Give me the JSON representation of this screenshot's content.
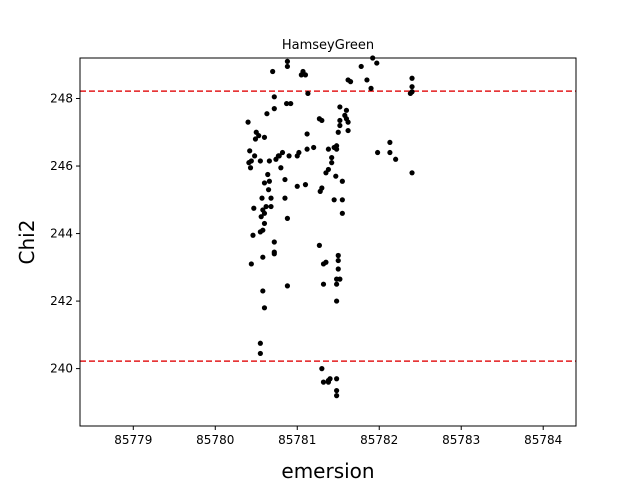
{
  "chart_data": {
    "type": "scatter",
    "title": "HamseyGreen",
    "xlabel": "emersion",
    "ylabel": "Chi2",
    "xlim": [
      85778.35,
      85784.4
    ],
    "ylim": [
      238.3,
      249.2
    ],
    "xticks": [
      85779,
      85780,
      85781,
      85782,
      85783,
      85784
    ],
    "yticks": [
      240,
      242,
      244,
      246,
      248
    ],
    "grid": false,
    "marker_color": "#000000",
    "reference_lines": [
      {
        "axis": "y",
        "value": 248.22,
        "color": "#e31a1c",
        "style": "dashed"
      },
      {
        "axis": "y",
        "value": 240.22,
        "color": "#e31a1c",
        "style": "dashed"
      }
    ],
    "points": [
      [
        85780.4,
        247.3
      ],
      [
        85780.42,
        246.45
      ],
      [
        85780.41,
        246.1
      ],
      [
        85780.44,
        246.15
      ],
      [
        85780.43,
        245.95
      ],
      [
        85780.48,
        246.3
      ],
      [
        85780.5,
        247.0
      ],
      [
        85780.49,
        246.8
      ],
      [
        85780.53,
        246.9
      ],
      [
        85780.55,
        246.15
      ],
      [
        85780.47,
        244.75
      ],
      [
        85780.46,
        243.95
      ],
      [
        85780.44,
        243.1
      ],
      [
        85780.55,
        244.05
      ],
      [
        85780.56,
        244.5
      ],
      [
        85780.58,
        244.1
      ],
      [
        85780.6,
        244.3
      ],
      [
        85780.58,
        244.7
      ],
      [
        85780.6,
        244.6
      ],
      [
        85780.62,
        244.8
      ],
      [
        85780.57,
        245.05
      ],
      [
        85780.6,
        245.5
      ],
      [
        85780.64,
        245.75
      ],
      [
        85780.66,
        245.55
      ],
      [
        85780.65,
        245.3
      ],
      [
        85780.68,
        245.05
      ],
      [
        85780.68,
        244.8
      ],
      [
        85780.66,
        246.15
      ],
      [
        85780.6,
        246.85
      ],
      [
        85780.63,
        247.55
      ],
      [
        85780.72,
        247.7
      ],
      [
        85780.72,
        248.05
      ],
      [
        85780.7,
        248.8
      ],
      [
        85780.58,
        243.3
      ],
      [
        85780.58,
        242.3
      ],
      [
        85780.6,
        241.8
      ],
      [
        85780.55,
        240.75
      ],
      [
        85780.55,
        240.45
      ],
      [
        85780.72,
        243.75
      ],
      [
        85780.72,
        243.45
      ],
      [
        85780.72,
        243.4
      ],
      [
        85780.74,
        246.2
      ],
      [
        85780.77,
        246.3
      ],
      [
        85780.78,
        246.3
      ],
      [
        85780.82,
        246.4
      ],
      [
        85780.8,
        245.95
      ],
      [
        85780.85,
        245.6
      ],
      [
        85780.88,
        244.45
      ],
      [
        85780.88,
        242.45
      ],
      [
        85780.85,
        245.05
      ],
      [
        85780.87,
        247.85
      ],
      [
        85780.92,
        247.85
      ],
      [
        85780.9,
        246.3
      ],
      [
        85780.88,
        249.1
      ],
      [
        85780.88,
        248.95
      ],
      [
        85781.0,
        246.3
      ],
      [
        85781.0,
        245.4
      ],
      [
        85781.02,
        246.4
      ],
      [
        85781.05,
        248.7
      ],
      [
        85781.07,
        248.8
      ],
      [
        85781.1,
        248.7
      ],
      [
        85781.1,
        245.45
      ],
      [
        85781.12,
        246.5
      ],
      [
        85781.12,
        246.95
      ],
      [
        85781.13,
        248.15
      ],
      [
        85781.2,
        246.55
      ],
      [
        85781.27,
        247.4
      ],
      [
        85781.3,
        247.35
      ],
      [
        85781.28,
        245.25
      ],
      [
        85781.3,
        245.35
      ],
      [
        85781.27,
        243.65
      ],
      [
        85781.32,
        243.1
      ],
      [
        85781.35,
        243.15
      ],
      [
        85781.32,
        242.5
      ],
      [
        85781.35,
        245.8
      ],
      [
        85781.38,
        245.9
      ],
      [
        85781.42,
        246.1
      ],
      [
        85781.42,
        246.25
      ],
      [
        85781.45,
        246.55
      ],
      [
        85781.48,
        246.6
      ],
      [
        85781.45,
        245.0
      ],
      [
        85781.47,
        245.7
      ],
      [
        85781.5,
        243.35
      ],
      [
        85781.5,
        243.2
      ],
      [
        85781.5,
        242.95
      ],
      [
        85781.48,
        242.65
      ],
      [
        85781.48,
        242.5
      ],
      [
        85781.48,
        242.0
      ],
      [
        85781.52,
        242.65
      ],
      [
        85781.48,
        246.5
      ],
      [
        85781.38,
        246.5
      ],
      [
        85781.5,
        247.0
      ],
      [
        85781.52,
        247.35
      ],
      [
        85781.52,
        247.75
      ],
      [
        85781.52,
        247.2
      ],
      [
        85781.55,
        245.55
      ],
      [
        85781.55,
        245.0
      ],
      [
        85781.55,
        244.6
      ],
      [
        85781.58,
        247.5
      ],
      [
        85781.6,
        247.65
      ],
      [
        85781.6,
        247.4
      ],
      [
        85781.62,
        247.05
      ],
      [
        85781.62,
        247.3
      ],
      [
        85781.62,
        248.55
      ],
      [
        85781.65,
        248.5
      ],
      [
        85781.78,
        248.95
      ],
      [
        85781.85,
        248.55
      ],
      [
        85781.9,
        248.3
      ],
      [
        85781.92,
        249.2
      ],
      [
        85781.97,
        249.05
      ],
      [
        85781.98,
        246.4
      ],
      [
        85782.13,
        246.7
      ],
      [
        85782.13,
        246.4
      ],
      [
        85782.2,
        246.2
      ],
      [
        85782.38,
        248.15
      ],
      [
        85782.4,
        248.2
      ],
      [
        85782.4,
        248.35
      ],
      [
        85782.4,
        248.6
      ],
      [
        85782.4,
        245.8
      ],
      [
        85781.3,
        240.0
      ],
      [
        85781.32,
        239.6
      ],
      [
        85781.38,
        239.6
      ],
      [
        85781.4,
        239.7
      ],
      [
        85781.38,
        239.65
      ],
      [
        85781.48,
        239.7
      ],
      [
        85781.48,
        239.35
      ],
      [
        85781.48,
        239.2
      ]
    ]
  }
}
